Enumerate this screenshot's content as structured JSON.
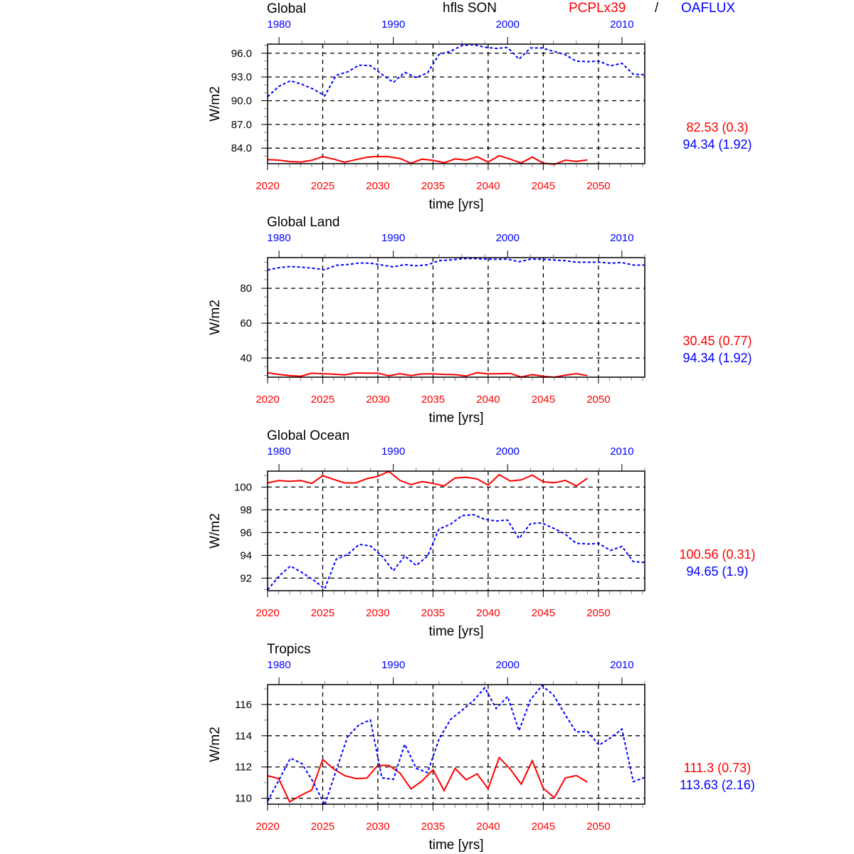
{
  "header": {
    "variable": "hfls SON",
    "model": "PCPLx39",
    "separator": "/",
    "obs": "OAFLUX"
  },
  "colors": {
    "model": "#ff0000",
    "obs": "#0000ff",
    "axis": "#000000"
  },
  "chart_data": [
    {
      "type": "line",
      "title": "Global",
      "xlabel": "time [yrs]",
      "ylabel": "W/m2",
      "grid": true,
      "xlim_bottom": [
        2020,
        2054.2
      ],
      "xticks_bottom": [
        "2020",
        "2025",
        "2030",
        "2035",
        "2040",
        "2045",
        "2050"
      ],
      "xlim_top": [
        1979,
        2012
      ],
      "xticks_top": [
        "1980",
        "1990",
        "2000",
        "2010"
      ],
      "ylim": [
        82.04,
        97.15
      ],
      "yticks": [
        "84.0",
        "87.0",
        "90.0",
        "93.0",
        "96.0"
      ],
      "ytick_values": [
        84,
        87,
        90,
        93,
        96
      ],
      "stats": [
        "82.53 (0.3)",
        "94.34 (1.92)"
      ],
      "series": [
        {
          "name": "PCPLx39",
          "axis": "bottom",
          "x_start": 2020,
          "style": "solid",
          "values": [
            82.55,
            82.49,
            82.31,
            82.25,
            82.46,
            82.94,
            82.61,
            82.22,
            82.55,
            82.85,
            82.97,
            82.91,
            82.7,
            82.1,
            82.61,
            82.46,
            82.16,
            82.64,
            82.49,
            82.91,
            82.25,
            83.06,
            82.61,
            82.13,
            82.88,
            82.1,
            81.95,
            82.49,
            82.34,
            82.52
          ]
        },
        {
          "name": "OAFLUX",
          "axis": "top",
          "x_start": 1979,
          "style": "dotted",
          "values": [
            90.5,
            91.83,
            92.52,
            92.07,
            91.47,
            90.62,
            93.22,
            93.64,
            94.49,
            94.43,
            93.34,
            92.31,
            93.58,
            92.92,
            93.52,
            95.85,
            96.24,
            96.97,
            97.09,
            96.76,
            96.6,
            96.73,
            95.24,
            96.66,
            96.66,
            96.24,
            95.85,
            95.0,
            94.94,
            95.0,
            94.4,
            94.73,
            93.34,
            93.28
          ]
        }
      ]
    },
    {
      "type": "line",
      "title": "Global Land",
      "xlabel": "time [yrs]",
      "ylabel": "W/m2",
      "grid": true,
      "xlim_bottom": [
        2020,
        2054.2
      ],
      "xticks_bottom": [
        "2020",
        "2025",
        "2030",
        "2035",
        "2040",
        "2045",
        "2050"
      ],
      "xlim_top": [
        1979,
        2012
      ],
      "xticks_top": [
        "1980",
        "1990",
        "2000",
        "2010"
      ],
      "ylim": [
        29.0,
        97.6
      ],
      "yticks": [
        "40",
        "60",
        "80"
      ],
      "ytick_values": [
        40,
        60,
        80
      ],
      "stats": [
        "30.45 (0.77)",
        "94.34 (1.92)"
      ],
      "series": [
        {
          "name": "PCPLx39",
          "axis": "bottom",
          "x_start": 2020,
          "style": "solid",
          "values": [
            31.56,
            30.61,
            29.93,
            29.52,
            31.29,
            31.02,
            30.75,
            30.34,
            31.43,
            31.29,
            31.29,
            29.8,
            31.02,
            29.93,
            30.88,
            30.88,
            30.61,
            30.48,
            29.66,
            31.56,
            30.88,
            31.02,
            31.16,
            29.12,
            30.48,
            29.52,
            28.98,
            30.2,
            31.02,
            29.93
          ]
        },
        {
          "name": "OAFLUX",
          "axis": "top",
          "x_start": 1979,
          "style": "dotted",
          "values": [
            90.5,
            91.83,
            92.52,
            92.07,
            91.47,
            90.62,
            93.22,
            93.64,
            94.49,
            94.43,
            93.34,
            92.31,
            93.58,
            92.92,
            93.52,
            95.85,
            96.24,
            96.97,
            97.09,
            96.76,
            96.6,
            96.73,
            95.24,
            96.66,
            96.66,
            96.24,
            95.85,
            95.0,
            94.94,
            95.0,
            94.4,
            94.73,
            93.34,
            93.28
          ]
        }
      ]
    },
    {
      "type": "line",
      "title": "Global Ocean",
      "xlabel": "time [yrs]",
      "ylabel": "W/m2",
      "grid": true,
      "xlim_bottom": [
        2020,
        2054.2
      ],
      "xticks_bottom": [
        "2020",
        "2025",
        "2030",
        "2035",
        "2040",
        "2045",
        "2050"
      ],
      "xlim_top": [
        1979,
        2012
      ],
      "xticks_top": [
        "1980",
        "1990",
        "2000",
        "2010"
      ],
      "ylim": [
        90.9,
        101.4
      ],
      "yticks": [
        "92",
        "94",
        "96",
        "98",
        "100"
      ],
      "ytick_values": [
        92,
        94,
        96,
        98,
        100
      ],
      "stats": [
        "100.56 (0.31)",
        "94.65 (1.9)"
      ],
      "series": [
        {
          "name": "PCPLx39",
          "axis": "bottom",
          "x_start": 2020,
          "style": "solid",
          "values": [
            100.36,
            100.57,
            100.5,
            100.57,
            100.32,
            101.0,
            100.67,
            100.36,
            100.36,
            100.74,
            100.95,
            101.37,
            100.59,
            100.21,
            100.48,
            100.32,
            100.1,
            100.8,
            100.86,
            100.71,
            100.17,
            101.09,
            100.53,
            100.63,
            101.05,
            100.46,
            100.38,
            100.59,
            100.1,
            100.78
          ]
        },
        {
          "name": "OAFLUX",
          "axis": "top",
          "x_start": 1979,
          "style": "dotted",
          "values": [
            90.97,
            92.19,
            93.07,
            92.5,
            91.85,
            91.07,
            93.66,
            94.08,
            94.96,
            94.83,
            93.95,
            92.65,
            93.95,
            93.11,
            93.95,
            96.32,
            96.74,
            97.48,
            97.58,
            97.16,
            97.02,
            97.1,
            95.48,
            96.79,
            96.85,
            96.39,
            95.9,
            95.06,
            95.0,
            95.04,
            94.43,
            94.79,
            93.45,
            93.38
          ]
        }
      ]
    },
    {
      "type": "line",
      "title": "Tropics",
      "xlabel": "time [yrs]",
      "ylabel": "W/m2",
      "grid": true,
      "xlim_bottom": [
        2020,
        2054.2
      ],
      "xticks_bottom": [
        "2020",
        "2025",
        "2030",
        "2035",
        "2040",
        "2045",
        "2050"
      ],
      "xlim_top": [
        1979,
        2012
      ],
      "xticks_top": [
        "1980",
        "1990",
        "2000",
        "2010"
      ],
      "ylim": [
        109.62,
        117.27
      ],
      "yticks": [
        "110",
        "112",
        "114",
        "116"
      ],
      "ytick_values": [
        110,
        112,
        114,
        116
      ],
      "stats": [
        "111.3 (0.73)",
        "113.63 (2.16)"
      ],
      "series": [
        {
          "name": "PCPLx39",
          "axis": "bottom",
          "x_start": 2020,
          "style": "solid",
          "values": [
            111.44,
            111.26,
            109.77,
            110.18,
            110.52,
            112.48,
            111.87,
            111.44,
            111.26,
            111.29,
            112.1,
            112.1,
            111.61,
            110.6,
            111.1,
            111.82,
            110.49,
            111.91,
            111.18,
            111.56,
            110.61,
            112.6,
            111.87,
            110.9,
            112.4,
            110.64,
            110.03,
            111.3,
            111.45,
            111.03
          ]
        },
        {
          "name": "OAFLUX",
          "axis": "top",
          "x_start": 1979,
          "style": "dotted",
          "values": [
            109.8,
            111.18,
            112.56,
            112.22,
            111.03,
            109.57,
            111.79,
            113.94,
            114.7,
            115.01,
            111.3,
            111.21,
            113.45,
            111.91,
            111.64,
            113.78,
            115.04,
            115.62,
            116.23,
            117.07,
            115.74,
            116.51,
            114.32,
            116.3,
            117.2,
            116.62,
            115.39,
            114.24,
            114.27,
            113.4,
            113.86,
            114.43,
            111.06,
            111.33
          ]
        }
      ]
    }
  ]
}
